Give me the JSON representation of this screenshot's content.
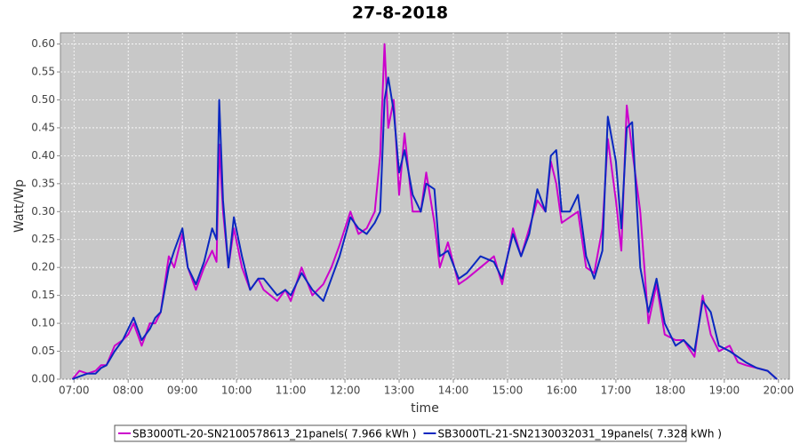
{
  "chart_data": {
    "type": "line",
    "title": "27-8-2018",
    "xlabel": "time",
    "ylabel": "Watt/Wp",
    "x": [
      6.97,
      7.1,
      7.25,
      7.4,
      7.5,
      7.6,
      7.75,
      7.9,
      8.0,
      8.1,
      8.25,
      8.4,
      8.5,
      8.6,
      8.75,
      8.85,
      9.0,
      9.1,
      9.25,
      9.4,
      9.55,
      9.63,
      9.68,
      9.75,
      9.85,
      9.95,
      10.1,
      10.25,
      10.4,
      10.5,
      10.75,
      10.9,
      11.0,
      11.2,
      11.4,
      11.6,
      11.75,
      11.9,
      12.1,
      12.25,
      12.4,
      12.55,
      12.65,
      12.73,
      12.8,
      12.9,
      13.0,
      13.1,
      13.25,
      13.4,
      13.5,
      13.65,
      13.75,
      13.9,
      14.1,
      14.25,
      14.5,
      14.75,
      14.9,
      15.1,
      15.25,
      15.4,
      15.55,
      15.7,
      15.8,
      15.9,
      16.0,
      16.15,
      16.3,
      16.45,
      16.6,
      16.75,
      16.85,
      17.0,
      17.1,
      17.2,
      17.3,
      17.45,
      17.6,
      17.75,
      17.9,
      18.1,
      18.25,
      18.45,
      18.6,
      18.75,
      18.9,
      19.1,
      19.25,
      19.4,
      19.6,
      19.8,
      19.97
    ],
    "series": [
      {
        "name": "SB3000TL-20-SN2100578613_21panels( 7.966 kWh )",
        "color": "#cc00cc",
        "values": [
          0,
          0.015,
          0.01,
          0.015,
          0.025,
          0.025,
          0.06,
          0.07,
          0.08,
          0.1,
          0.06,
          0.1,
          0.1,
          0.12,
          0.22,
          0.2,
          0.26,
          0.2,
          0.16,
          0.2,
          0.23,
          0.21,
          0.42,
          0.3,
          0.2,
          0.27,
          0.2,
          0.16,
          0.18,
          0.16,
          0.14,
          0.16,
          0.14,
          0.2,
          0.15,
          0.17,
          0.2,
          0.24,
          0.3,
          0.26,
          0.27,
          0.3,
          0.4,
          0.6,
          0.45,
          0.5,
          0.33,
          0.44,
          0.3,
          0.3,
          0.37,
          0.28,
          0.2,
          0.245,
          0.17,
          0.18,
          0.2,
          0.22,
          0.17,
          0.27,
          0.22,
          0.27,
          0.32,
          0.3,
          0.39,
          0.35,
          0.28,
          0.29,
          0.3,
          0.2,
          0.19,
          0.27,
          0.43,
          0.32,
          0.23,
          0.49,
          0.41,
          0.3,
          0.1,
          0.17,
          0.08,
          0.07,
          0.07,
          0.04,
          0.15,
          0.08,
          0.05,
          0.06,
          0.03,
          0.025,
          0.02,
          0.015,
          0
        ]
      },
      {
        "name": "SB3000TL-21-SN2130032031_19panels( 7.328 kWh )",
        "color": "#0a28c0",
        "values": [
          0,
          0.005,
          0.01,
          0.01,
          0.02,
          0.025,
          0.05,
          0.07,
          0.09,
          0.11,
          0.07,
          0.09,
          0.11,
          0.12,
          0.2,
          0.23,
          0.27,
          0.2,
          0.17,
          0.21,
          0.27,
          0.25,
          0.5,
          0.32,
          0.2,
          0.29,
          0.22,
          0.16,
          0.18,
          0.18,
          0.15,
          0.16,
          0.15,
          0.19,
          0.16,
          0.14,
          0.18,
          0.22,
          0.29,
          0.27,
          0.26,
          0.28,
          0.3,
          0.5,
          0.54,
          0.48,
          0.37,
          0.41,
          0.33,
          0.3,
          0.35,
          0.34,
          0.22,
          0.23,
          0.18,
          0.19,
          0.22,
          0.21,
          0.18,
          0.26,
          0.22,
          0.26,
          0.34,
          0.3,
          0.4,
          0.41,
          0.3,
          0.3,
          0.33,
          0.22,
          0.18,
          0.23,
          0.47,
          0.39,
          0.27,
          0.45,
          0.46,
          0.2,
          0.12,
          0.18,
          0.1,
          0.06,
          0.07,
          0.05,
          0.14,
          0.12,
          0.06,
          0.05,
          0.04,
          0.03,
          0.02,
          0.015,
          0
        ]
      }
    ],
    "xlim": [
      6.75,
      20.2
    ],
    "xticks": [
      {
        "value": 7,
        "label": "07:00"
      },
      {
        "value": 8,
        "label": "08:00"
      },
      {
        "value": 9,
        "label": "09:00"
      },
      {
        "value": 10,
        "label": "10:00"
      },
      {
        "value": 11,
        "label": "11:00"
      },
      {
        "value": 12,
        "label": "12:00"
      },
      {
        "value": 13,
        "label": "13:00"
      },
      {
        "value": 14,
        "label": "14:00"
      },
      {
        "value": 15,
        "label": "15:00"
      },
      {
        "value": 16,
        "label": "16:00"
      },
      {
        "value": 17,
        "label": "17:00"
      },
      {
        "value": 18,
        "label": "18:00"
      },
      {
        "value": 19,
        "label": "19:00"
      },
      {
        "value": 20,
        "label": "20:00"
      }
    ],
    "ylim": [
      0,
      0.62
    ],
    "yticks": [
      {
        "value": 0,
        "label": "0.00"
      },
      {
        "value": 0.05,
        "label": "0.05"
      },
      {
        "value": 0.1,
        "label": "0.10"
      },
      {
        "value": 0.15,
        "label": "0.15"
      },
      {
        "value": 0.2,
        "label": "0.20"
      },
      {
        "value": 0.25,
        "label": "0.25"
      },
      {
        "value": 0.3,
        "label": "0.30"
      },
      {
        "value": 0.35,
        "label": "0.35"
      },
      {
        "value": 0.4,
        "label": "0.40"
      },
      {
        "value": 0.45,
        "label": "0.45"
      },
      {
        "value": 0.5,
        "label": "0.50"
      },
      {
        "value": 0.55,
        "label": "0.55"
      },
      {
        "value": 0.6,
        "label": "0.60"
      }
    ],
    "grid": true,
    "legend": "bottom"
  }
}
